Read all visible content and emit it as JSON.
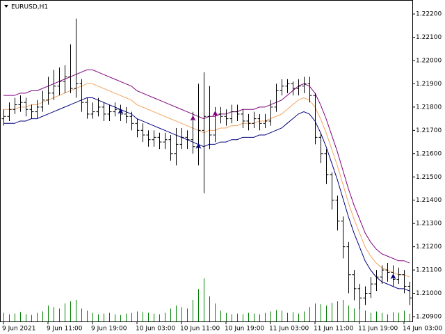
{
  "chart_data": {
    "type": "ohlc",
    "title": "EURUSD,H1",
    "categories": [
      "9 Jun 2021",
      null,
      null,
      null,
      null,
      null,
      null,
      null,
      "9 Jun 11:00",
      null,
      null,
      null,
      null,
      null,
      null,
      null,
      "9 Jun 19:00",
      null,
      null,
      null,
      null,
      null,
      null,
      null,
      "10 Jun 03:00",
      null,
      null,
      null,
      null,
      null,
      null,
      null,
      "10 Jun 11:00",
      null,
      null,
      null,
      null,
      null,
      null,
      null,
      "10 Jun 19:00",
      null,
      null,
      null,
      null,
      null,
      null,
      null,
      "11 Jun 03:00",
      null,
      null,
      null,
      null,
      null,
      null,
      null,
      "11 Jun 11:00",
      null,
      null,
      null,
      null,
      null,
      null,
      null,
      "11 Jun 19:00",
      null,
      null,
      null,
      null,
      null,
      null,
      null,
      "14 Jun 03:00",
      null
    ],
    "open": [
      1.2175,
      1.2176,
      1.2179,
      1.2181,
      1.2182,
      1.2179,
      1.2178,
      1.218,
      1.2183,
      1.2186,
      1.2189,
      1.2191,
      1.2193,
      1.2188,
      1.219,
      1.2182,
      1.2177,
      1.2178,
      1.218,
      1.2177,
      1.2178,
      1.2179,
      1.2177,
      1.2176,
      1.2173,
      1.217,
      1.2168,
      1.2166,
      1.2167,
      1.2165,
      1.2166,
      1.216,
      1.2164,
      1.2167,
      1.2166,
      1.2163,
      1.217,
      1.2176,
      1.2168,
      1.2177,
      1.2176,
      1.2175,
      1.2178,
      1.2177,
      1.2174,
      1.2173,
      1.2175,
      1.2173,
      1.2174,
      1.218,
      1.2187,
      1.2189,
      1.219,
      1.2188,
      1.2189,
      1.219,
      1.2185,
      1.2167,
      1.216,
      1.2151,
      1.214,
      1.2131,
      1.212,
      1.2108,
      1.2102,
      1.2098,
      1.21,
      1.2104,
      1.2107,
      1.211,
      1.2109,
      1.2106,
      1.2108,
      1.2103
    ],
    "high": [
      1.2179,
      1.2182,
      1.2184,
      1.2185,
      1.2184,
      1.2181,
      1.2183,
      1.2187,
      1.2193,
      1.2196,
      1.2197,
      1.2198,
      1.2207,
      1.2218,
      1.2192,
      1.2184,
      1.2182,
      1.2184,
      1.2182,
      1.2181,
      1.2182,
      1.2181,
      1.218,
      1.2178,
      1.2175,
      1.2173,
      1.217,
      1.217,
      1.2169,
      1.2169,
      1.2168,
      1.2171,
      1.2171,
      1.217,
      1.2178,
      1.219,
      1.2195,
      1.2189,
      1.218,
      1.218,
      1.2179,
      1.2181,
      1.2181,
      1.2179,
      1.2177,
      1.2178,
      1.2177,
      1.2177,
      1.2183,
      1.219,
      1.2192,
      1.2192,
      1.2191,
      1.2192,
      1.2193,
      1.2193,
      1.2186,
      1.2169,
      1.2162,
      1.2152,
      1.2142,
      1.2133,
      1.2122,
      1.211,
      1.2104,
      1.2103,
      1.2107,
      1.211,
      1.2112,
      1.2113,
      1.2112,
      1.2111,
      1.211,
      1.2105
    ],
    "low": [
      1.2172,
      1.2174,
      1.2177,
      1.2178,
      1.2176,
      1.2175,
      1.2175,
      1.2178,
      1.2181,
      1.2183,
      1.2185,
      1.2186,
      1.2186,
      1.2184,
      1.2178,
      1.2175,
      1.2175,
      1.2176,
      1.2174,
      1.2174,
      1.2176,
      1.2174,
      1.2173,
      1.217,
      1.2167,
      1.2165,
      1.2163,
      1.2163,
      1.2162,
      1.2162,
      1.2157,
      1.2155,
      1.2162,
      1.2162,
      1.216,
      1.2155,
      1.2143,
      1.2162,
      1.2165,
      1.2173,
      1.2172,
      1.2173,
      1.2174,
      1.2171,
      1.217,
      1.2171,
      1.217,
      1.2171,
      1.2172,
      1.2178,
      1.2185,
      1.2186,
      1.2185,
      1.2185,
      1.2186,
      1.2182,
      1.2164,
      1.2156,
      1.2147,
      1.2136,
      1.2127,
      1.2115,
      1.21,
      1.2097,
      1.2093,
      1.2095,
      1.2098,
      1.2101,
      1.2104,
      1.2105,
      1.2103,
      1.2104,
      1.21,
      1.2095
    ],
    "close": [
      1.2176,
      1.2179,
      1.2181,
      1.2182,
      1.2179,
      1.2178,
      1.218,
      1.2183,
      1.2186,
      1.2189,
      1.2191,
      1.2193,
      1.2188,
      1.219,
      1.2182,
      1.2177,
      1.2178,
      1.218,
      1.2177,
      1.2178,
      1.2179,
      1.2177,
      1.2176,
      1.2173,
      1.217,
      1.2168,
      1.2166,
      1.2167,
      1.2165,
      1.2166,
      1.216,
      1.2164,
      1.2167,
      1.2166,
      1.2163,
      1.217,
      1.2176,
      1.2168,
      1.2177,
      1.2176,
      1.2175,
      1.2178,
      1.2177,
      1.2174,
      1.2173,
      1.2175,
      1.2173,
      1.2174,
      1.218,
      1.2187,
      1.2189,
      1.219,
      1.2188,
      1.2189,
      1.219,
      1.2185,
      1.2167,
      1.216,
      1.2151,
      1.214,
      1.2131,
      1.212,
      1.2108,
      1.2102,
      1.2098,
      1.21,
      1.2104,
      1.2107,
      1.211,
      1.2109,
      1.2106,
      1.2108,
      1.2103,
      1.2098
    ],
    "bar_color": "#000000",
    "volume": {
      "color": "#008000",
      "values": [
        12,
        10,
        11,
        13,
        10,
        9,
        12,
        14,
        22,
        20,
        18,
        25,
        28,
        30,
        18,
        15,
        12,
        10,
        11,
        12,
        10,
        9,
        11,
        12,
        14,
        13,
        12,
        11,
        10,
        12,
        18,
        22,
        20,
        18,
        30,
        45,
        60,
        35,
        25,
        15,
        12,
        10,
        11,
        10,
        12,
        11,
        10,
        12,
        14,
        16,
        15,
        12,
        13,
        11,
        14,
        20,
        25,
        24,
        22,
        26,
        28,
        30,
        22,
        18,
        16,
        15,
        12,
        14,
        12,
        10,
        13,
        12,
        15,
        11
      ]
    },
    "lines": [
      {
        "color": "#800080",
        "values": [
          1.2185,
          1.2185,
          1.2185,
          1.2186,
          1.2186,
          1.2187,
          1.2187,
          1.2188,
          1.2189,
          1.219,
          1.2191,
          1.2192,
          1.2193,
          1.2194,
          1.2195,
          1.2196,
          1.2196,
          1.2195,
          1.2194,
          1.2193,
          1.2192,
          1.2191,
          1.219,
          1.2189,
          1.2187,
          1.2186,
          1.2185,
          1.2184,
          1.2183,
          1.2182,
          1.2181,
          1.218,
          1.2179,
          1.2178,
          1.2177,
          1.2176,
          1.2175,
          1.2176,
          1.2176,
          1.2177,
          1.2177,
          1.2178,
          1.2178,
          1.2179,
          1.2179,
          1.2179,
          1.218,
          1.218,
          1.2181,
          1.2182,
          1.2183,
          1.2185,
          1.2187,
          1.2189,
          1.219,
          1.2189,
          1.2186,
          1.2181,
          1.2175,
          1.2168,
          1.2161,
          1.2153,
          1.2145,
          1.2138,
          1.2132,
          1.2126,
          1.2122,
          1.2119,
          1.2117,
          1.2116,
          1.2115,
          1.2114,
          1.2114,
          1.2113
        ]
      },
      {
        "color": "#f4a460",
        "values": [
          1.2179,
          1.2179,
          1.2179,
          1.218,
          1.218,
          1.2181,
          1.2181,
          1.2182,
          1.2183,
          1.2184,
          1.2185,
          1.2186,
          1.2187,
          1.2188,
          1.2189,
          1.219,
          1.219,
          1.2189,
          1.2188,
          1.2187,
          1.2186,
          1.2185,
          1.2184,
          1.2183,
          1.2181,
          1.218,
          1.2179,
          1.2178,
          1.2177,
          1.2176,
          1.2175,
          1.2174,
          1.2173,
          1.2172,
          1.2171,
          1.217,
          1.2169,
          1.217,
          1.217,
          1.2171,
          1.2171,
          1.2172,
          1.2172,
          1.2173,
          1.2173,
          1.2173,
          1.2174,
          1.2174,
          1.2175,
          1.2176,
          1.2177,
          1.2179,
          1.2181,
          1.2183,
          1.2184,
          1.2183,
          1.218,
          1.2175,
          1.2169,
          1.2162,
          1.2155,
          1.2147,
          1.2139,
          1.2132,
          1.2126,
          1.212,
          1.2116,
          1.2113,
          1.2111,
          1.211,
          1.2109,
          1.2108,
          1.2108,
          1.2107
        ]
      },
      {
        "color": "#000080",
        "values": [
          1.2173,
          1.2173,
          1.2173,
          1.2174,
          1.2174,
          1.2175,
          1.2175,
          1.2176,
          1.2177,
          1.2178,
          1.2179,
          1.218,
          1.2181,
          1.2182,
          1.2183,
          1.2184,
          1.2184,
          1.2183,
          1.2182,
          1.2181,
          1.218,
          1.2179,
          1.2178,
          1.2177,
          1.2175,
          1.2174,
          1.2173,
          1.2172,
          1.2171,
          1.217,
          1.2169,
          1.2168,
          1.2167,
          1.2166,
          1.2165,
          1.2164,
          1.2163,
          1.2164,
          1.2164,
          1.2165,
          1.2165,
          1.2166,
          1.2166,
          1.2167,
          1.2167,
          1.2167,
          1.2168,
          1.2168,
          1.2169,
          1.217,
          1.2171,
          1.2173,
          1.2175,
          1.2177,
          1.2178,
          1.2177,
          1.2174,
          1.2169,
          1.2163,
          1.2156,
          1.2149,
          1.2141,
          1.2133,
          1.2126,
          1.212,
          1.2114,
          1.211,
          1.2107,
          1.2105,
          1.2104,
          1.2103,
          1.2102,
          1.2102,
          1.2101
        ]
      }
    ],
    "signals": [
      {
        "index": 21,
        "price": 1.2178,
        "color": "#000080"
      },
      {
        "index": 34,
        "price": 1.2175,
        "color": "#800080"
      },
      {
        "index": 35,
        "price": 1.2163,
        "color": "#000080"
      },
      {
        "index": 38,
        "price": 1.2177,
        "color": "#800080"
      },
      {
        "index": 70,
        "price": 1.2107,
        "color": "#000080"
      }
    ],
    "ylim": [
      1.20879,
      1.2226
    ],
    "yticks": [
      {
        "value": 1.222,
        "label": "1.22200"
      },
      {
        "value": 1.221,
        "label": "1.22100"
      },
      {
        "value": 1.22,
        "label": "1.22000"
      },
      {
        "value": 1.219,
        "label": "1.21900"
      },
      {
        "value": 1.218,
        "label": "1.21800"
      },
      {
        "value": 1.217,
        "label": "1.21700"
      },
      {
        "value": 1.216,
        "label": "1.21600"
      },
      {
        "value": 1.215,
        "label": "1.21500"
      },
      {
        "value": 1.214,
        "label": "1.21400"
      },
      {
        "value": 1.213,
        "label": "1.21300"
      },
      {
        "value": 1.212,
        "label": "1.21200"
      },
      {
        "value": 1.211,
        "label": "1.21100"
      },
      {
        "value": 1.21,
        "label": "1.21000"
      },
      {
        "value": 1.209,
        "label": "1.20900"
      }
    ]
  }
}
